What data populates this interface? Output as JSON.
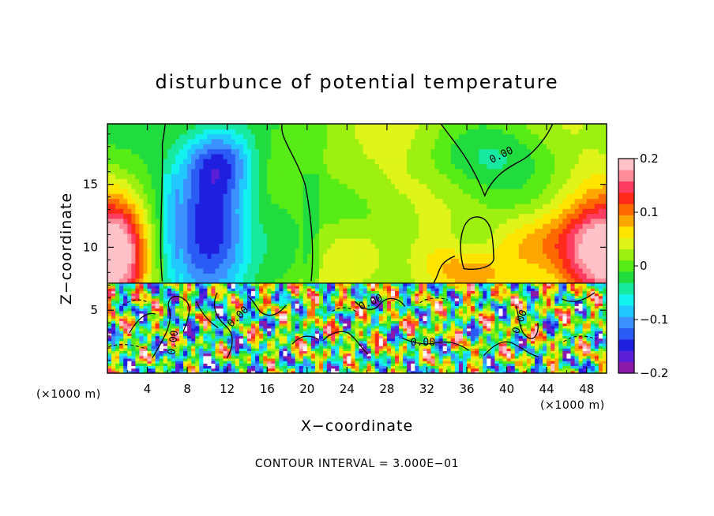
{
  "chart_data": {
    "type": "heatmap",
    "title": "disturbunce of potential temperature",
    "xlabel": "X−coordinate",
    "ylabel": "Z−coordinate",
    "x_unit_left": "(×1000 m)",
    "x_unit_right": "(×1000 m)",
    "footer": "CONTOUR INTERVAL = 3.000E−01",
    "xlim": [
      0,
      50
    ],
    "ylim": [
      0,
      19.8
    ],
    "x_ticks": [
      4,
      8,
      12,
      16,
      20,
      24,
      28,
      32,
      36,
      40,
      44,
      48
    ],
    "x_tick_labels": [
      "4",
      "8",
      "12",
      "16",
      "20",
      "24",
      "28",
      "32",
      "36",
      "40",
      "44",
      "48"
    ],
    "y_ticks": [
      5,
      10,
      15
    ],
    "y_tick_labels": [
      "5",
      "10",
      "15"
    ],
    "colorbar": {
      "range": [
        -0.2,
        0.2
      ],
      "ticks": [
        0.2,
        0.1,
        0,
        -0.1,
        -0.2
      ],
      "tick_labels": [
        "0.2",
        "0.1",
        "0",
        "−0.1",
        "−0.2"
      ],
      "colors": [
        "#8c1aa8",
        "#5a1fd6",
        "#1f1fe0",
        "#2a5cf5",
        "#3d90ff",
        "#21c8ff",
        "#13f2ef",
        "#17e9a0",
        "#20dc3e",
        "#58ec16",
        "#9df00f",
        "#dff51a",
        "#ffe400",
        "#ffa700",
        "#ff6a00",
        "#ff2a1a",
        "#ff3d62",
        "#ff8c98",
        "#ffc2c8"
      ]
    },
    "contour_labels": [
      {
        "text": "0.00",
        "x": 39.6,
        "y": 17.1
      },
      {
        "text": "0.00",
        "x": 31.6,
        "y": 2.2
      },
      {
        "text": "0.00",
        "x": 6.9,
        "y": 2.4
      },
      {
        "text": "0.00",
        "x": 13.3,
        "y": 4.3
      },
      {
        "text": "0.00",
        "x": 26.5,
        "y": 5.4
      },
      {
        "text": "0.00",
        "x": 41.6,
        "y": 4.0
      }
    ],
    "upper_features": [
      {
        "kind": "warm",
        "x": 0.8,
        "z": 9.6,
        "rx": 3.2,
        "rz": 4.2,
        "amp": 0.19
      },
      {
        "kind": "warm",
        "x": 49.6,
        "z": 9.4,
        "rx": 4.4,
        "rz": 4.2,
        "amp": 0.18
      },
      {
        "kind": "cool",
        "x": 10.5,
        "z": 12.2,
        "rx": 4.8,
        "rz": 6.2,
        "amp": -0.18
      },
      {
        "kind": "cool",
        "x": 11.4,
        "z": 16.8,
        "rx": 3.5,
        "rz": 2.8,
        "amp": -0.1
      },
      {
        "kind": "warm",
        "x": 24.8,
        "z": 9.4,
        "rx": 3.5,
        "rz": 2.5,
        "amp": 0.055
      },
      {
        "kind": "warm",
        "x": 42.8,
        "z": 10.6,
        "rx": 4.2,
        "rz": 2.5,
        "amp": 0.06
      },
      {
        "kind": "warm",
        "x": 35.5,
        "z": 8.8,
        "rx": 4.6,
        "rz": 1.9,
        "amp": 0.04
      },
      {
        "kind": "cool",
        "x": 36.7,
        "z": 10.2,
        "rx": 3.0,
        "rz": 1.7,
        "amp": -0.04
      },
      {
        "kind": "cool",
        "x": 35.8,
        "z": 17.2,
        "rx": 7.2,
        "rz": 2.4,
        "amp": -0.035
      },
      {
        "kind": "cool",
        "x": 17.8,
        "z": 10.0,
        "rx": 2.6,
        "rz": 4.6,
        "amp": -0.045
      }
    ]
  }
}
